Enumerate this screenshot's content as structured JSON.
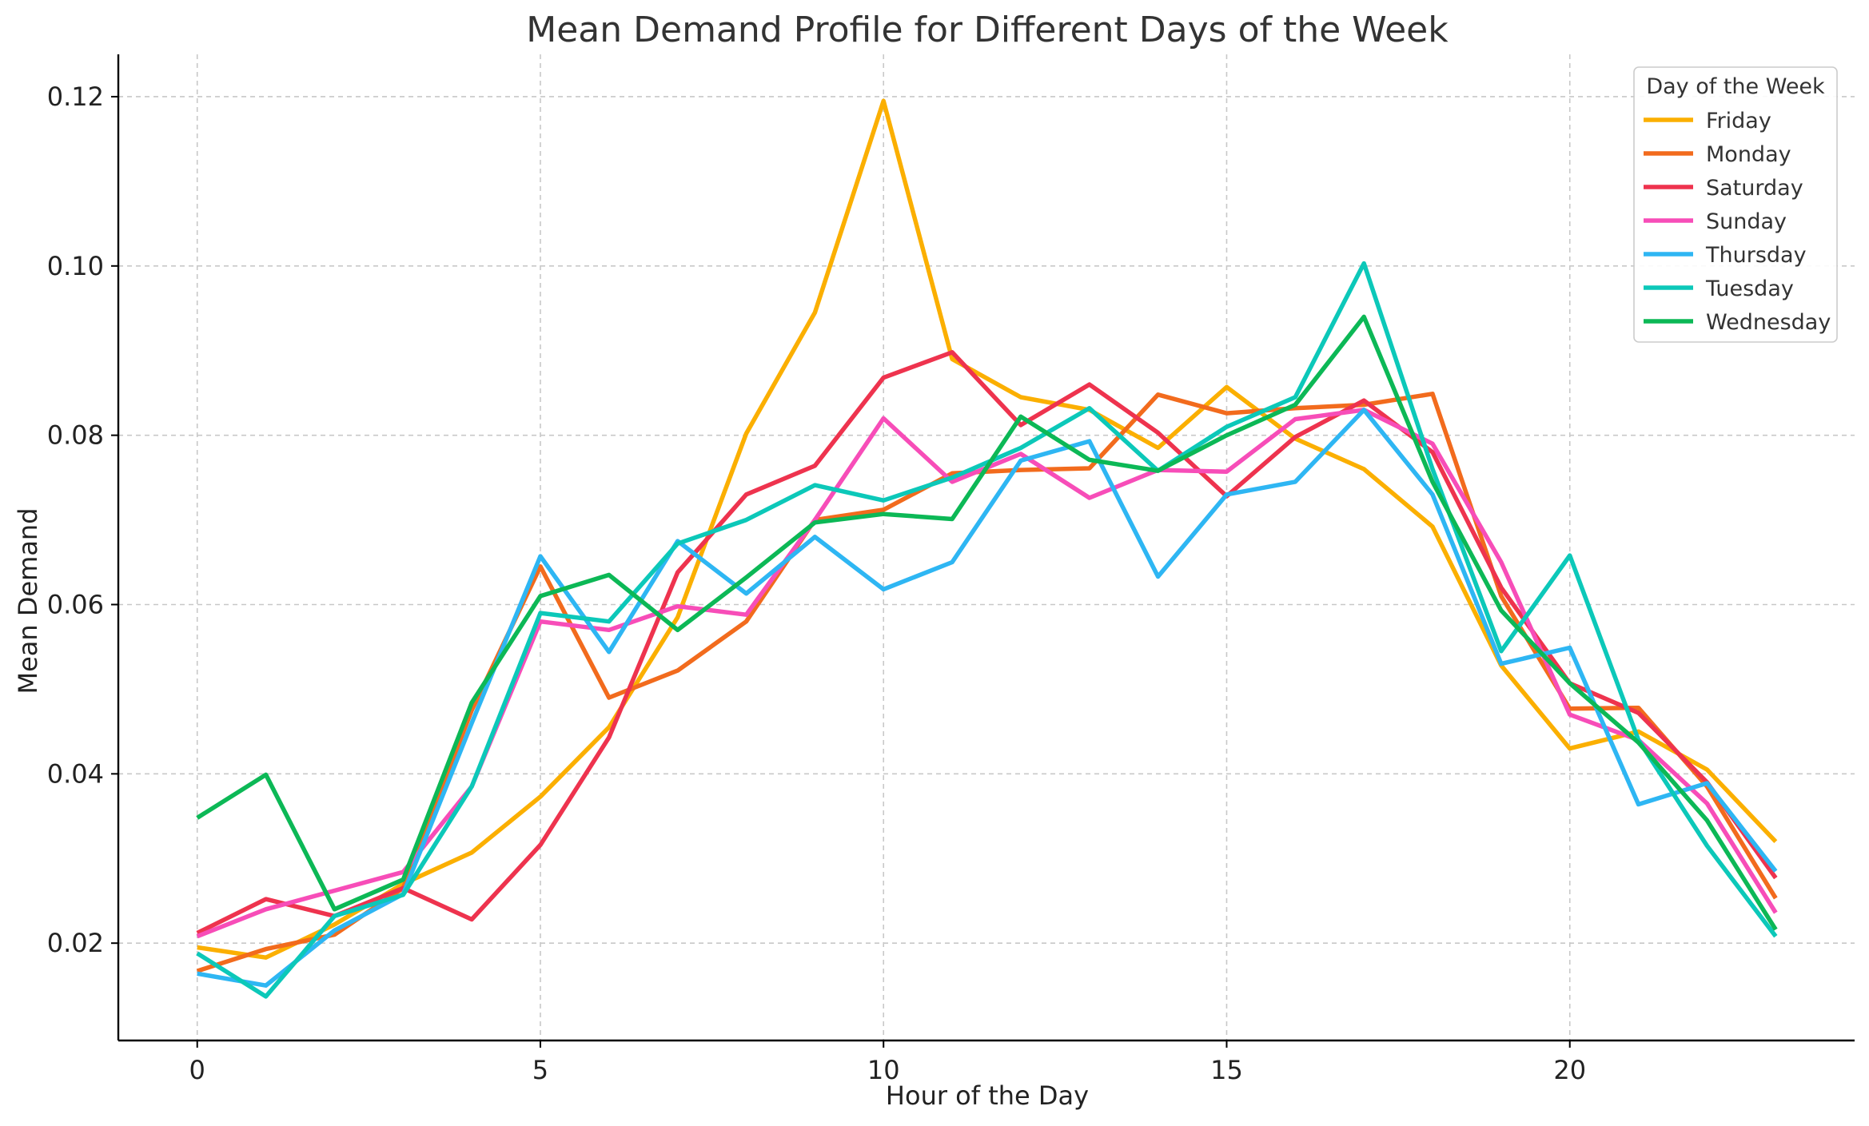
{
  "chart_data": {
    "type": "line",
    "title": "Mean Demand Profile for Different Days of the Week",
    "xlabel": "Hour of the Day",
    "ylabel": "Mean Demand",
    "xlim": [
      -1.15,
      24.15
    ],
    "ylim": [
      0.0085,
      0.125
    ],
    "xticks": [
      0,
      5,
      10,
      15,
      20
    ],
    "yticks": [
      0.02,
      0.04,
      0.06,
      0.08,
      0.1,
      0.12
    ],
    "ytick_labels": [
      "0.02",
      "0.04",
      "0.06",
      "0.08",
      "0.10",
      "0.12"
    ],
    "grid": true,
    "legend": {
      "title": "Day of the Week",
      "placement": "top-right"
    },
    "x": [
      0,
      1,
      2,
      3,
      4,
      5,
      6,
      7,
      8,
      9,
      10,
      11,
      12,
      13,
      14,
      15,
      16,
      17,
      18,
      19,
      20,
      21,
      22,
      23
    ],
    "series": [
      {
        "name": "Friday",
        "color": "#FBAF00",
        "values": [
          0.0195,
          0.0183,
          0.0222,
          0.027,
          0.0307,
          0.0373,
          0.0455,
          0.0585,
          0.0802,
          0.0945,
          0.1195,
          0.089,
          0.0845,
          0.083,
          0.0785,
          0.0857,
          0.0796,
          0.076,
          0.0692,
          0.0528,
          0.043,
          0.045,
          0.0405,
          0.032
        ]
      },
      {
        "name": "Monday",
        "color": "#F26B1D",
        "values": [
          0.0167,
          0.0193,
          0.021,
          0.0265,
          0.0475,
          0.0645,
          0.049,
          0.0522,
          0.058,
          0.07,
          0.0712,
          0.0755,
          0.0759,
          0.0761,
          0.0848,
          0.0826,
          0.0832,
          0.0836,
          0.0849,
          0.061,
          0.0477,
          0.0478,
          0.0385,
          0.0253
        ]
      },
      {
        "name": "Saturday",
        "color": "#EE334E",
        "values": [
          0.0212,
          0.0252,
          0.0232,
          0.0265,
          0.0228,
          0.0316,
          0.0443,
          0.0638,
          0.073,
          0.0764,
          0.0868,
          0.0898,
          0.0812,
          0.086,
          0.0803,
          0.0728,
          0.0798,
          0.0841,
          0.078,
          0.062,
          0.0507,
          0.0472,
          0.039,
          0.0277
        ]
      },
      {
        "name": "Sunday",
        "color": "#F74DB8",
        "values": [
          0.0208,
          0.024,
          0.0262,
          0.0284,
          0.0385,
          0.058,
          0.057,
          0.0598,
          0.0588,
          0.07,
          0.082,
          0.0745,
          0.0778,
          0.0726,
          0.0759,
          0.0757,
          0.0819,
          0.083,
          0.079,
          0.065,
          0.047,
          0.044,
          0.0365,
          0.0236
        ]
      },
      {
        "name": "Thursday",
        "color": "#2EB6F3",
        "values": [
          0.0164,
          0.015,
          0.0215,
          0.0258,
          0.046,
          0.0657,
          0.0544,
          0.0675,
          0.0613,
          0.068,
          0.0618,
          0.065,
          0.077,
          0.0793,
          0.0633,
          0.073,
          0.0745,
          0.083,
          0.073,
          0.053,
          0.0549,
          0.0364,
          0.0389,
          0.0285
        ]
      },
      {
        "name": "Tuesday",
        "color": "#0CC8B9",
        "values": [
          0.0188,
          0.0137,
          0.0232,
          0.0257,
          0.0385,
          0.059,
          0.058,
          0.0672,
          0.07,
          0.0741,
          0.0723,
          0.075,
          0.0785,
          0.0832,
          0.0758,
          0.081,
          0.0845,
          0.1003,
          0.076,
          0.0545,
          0.0658,
          0.044,
          0.0315,
          0.0208
        ]
      },
      {
        "name": "Wednesday",
        "color": "#0CB856",
        "values": [
          0.0348,
          0.0399,
          0.024,
          0.0275,
          0.0484,
          0.061,
          0.0635,
          0.057,
          0.0632,
          0.0697,
          0.0707,
          0.0701,
          0.0822,
          0.0771,
          0.0758,
          0.08,
          0.0836,
          0.094,
          0.0745,
          0.0593,
          0.0507,
          0.0437,
          0.0345,
          0.0216
        ]
      }
    ]
  }
}
